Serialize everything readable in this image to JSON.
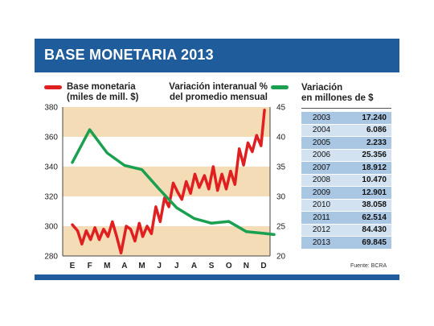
{
  "title": "BASE MONETARIA 2013",
  "legend": {
    "left_line1": "Base monetaria",
    "left_line2": "(miles de mill. $)",
    "right_line1": "Variación interanual %",
    "right_line2": "del promedio mensual",
    "left_color": "#e02020",
    "right_color": "#1aa050"
  },
  "table": {
    "header_line1": "Variación",
    "header_line2": "en millones de $",
    "rows": [
      {
        "year": "2003",
        "value": "17.240"
      },
      {
        "year": "2004",
        "value": "6.086"
      },
      {
        "year": "2005",
        "value": "2.233"
      },
      {
        "year": "2006",
        "value": "25.356"
      },
      {
        "year": "2007",
        "value": "18.912"
      },
      {
        "year": "2008",
        "value": "10.470"
      },
      {
        "year": "2009",
        "value": "12.901"
      },
      {
        "year": "2010",
        "value": "38.058"
      },
      {
        "year": "2011",
        "value": "62.514"
      },
      {
        "year": "2012",
        "value": "84.430"
      },
      {
        "year": "2013",
        "value": "69.845"
      }
    ]
  },
  "source": "Fuente: BCRA",
  "chart_data": {
    "type": "line",
    "categories": [
      "E",
      "F",
      "M",
      "A",
      "M",
      "J",
      "J",
      "A",
      "S",
      "O",
      "N",
      "D"
    ],
    "left_axis": {
      "ylim": [
        280,
        380
      ],
      "ticks": [
        "280",
        "300",
        "320",
        "340",
        "360",
        "380"
      ]
    },
    "right_axis": {
      "ylim": [
        20,
        45
      ],
      "ticks": [
        "20",
        "25",
        "30",
        "35",
        "40",
        "45"
      ]
    },
    "bands_left_axis": [
      [
        300,
        280
      ],
      [
        340,
        320
      ],
      [
        380,
        360
      ]
    ],
    "series": [
      {
        "name": "Base monetaria (miles de mill. $)",
        "axis": "left",
        "color": "#e02020",
        "x": [
          0,
          0.3,
          0.55,
          0.8,
          1.05,
          1.3,
          1.55,
          1.8,
          2.05,
          2.3,
          2.55,
          2.8,
          3.1,
          3.35,
          3.6,
          3.85,
          4.05,
          4.3,
          4.55,
          4.8,
          5.05,
          5.3,
          5.55,
          5.8,
          6.05,
          6.3,
          6.55,
          6.8,
          7.05,
          7.3,
          7.6,
          7.85,
          8.1,
          8.35,
          8.6,
          8.85,
          9.1,
          9.35,
          9.6,
          9.85,
          10.1,
          10.35,
          10.6,
          10.85,
          11.05
        ],
        "values": [
          301,
          297,
          288,
          297,
          291,
          299,
          291,
          298,
          293,
          303,
          293,
          282,
          300,
          298,
          290,
          302,
          293,
          300,
          295,
          313,
          303,
          319,
          313,
          329,
          323,
          318,
          330,
          322,
          335,
          326,
          334,
          325,
          340,
          324,
          335,
          325,
          337,
          328,
          352,
          341,
          356,
          350,
          361,
          354,
          378
        ]
      },
      {
        "name": "Variación interanual % del promedio mensual",
        "axis": "right",
        "color": "#1aa050",
        "x": [
          0,
          1,
          2,
          3,
          4,
          5,
          6,
          7,
          8,
          9,
          10,
          11,
          11.6
        ],
        "values": [
          35.7,
          41.2,
          37.3,
          35.2,
          34.5,
          31.2,
          28.1,
          26.3,
          25.5,
          25.8,
          24.1,
          23.8,
          23.6
        ]
      }
    ]
  }
}
